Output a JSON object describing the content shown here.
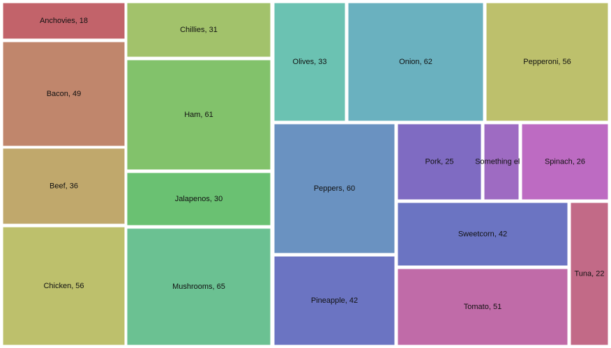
{
  "chart_data": {
    "type": "treemap",
    "title": "",
    "items": [
      {
        "name": "Anchovies",
        "value": 18,
        "label": "Anchovies, 18",
        "color": "#c2636a"
      },
      {
        "name": "Bacon",
        "value": 49,
        "label": "Bacon, 49",
        "color": "#c0866c"
      },
      {
        "name": "Beef",
        "value": 36,
        "label": "Beef, 36",
        "color": "#c0a86c"
      },
      {
        "name": "Chicken",
        "value": 56,
        "label": "Chicken, 56",
        "color": "#bdc06c"
      },
      {
        "name": "Chillies",
        "value": 31,
        "label": "Chillies, 31",
        "color": "#a2c26b"
      },
      {
        "name": "Ham",
        "value": 61,
        "label": "Ham, 61",
        "color": "#82c26b"
      },
      {
        "name": "Jalapenos",
        "value": 30,
        "label": "Jalapenos, 30",
        "color": "#6ac172"
      },
      {
        "name": "Mushrooms",
        "value": 65,
        "label": "Mushrooms, 65",
        "color": "#6bc192"
      },
      {
        "name": "Olives",
        "value": 33,
        "label": "Olives, 33",
        "color": "#6bc2b2"
      },
      {
        "name": "Onion",
        "value": 62,
        "label": "Onion, 62",
        "color": "#6ab1bf"
      },
      {
        "name": "Pepperoni",
        "value": 56,
        "label": "Pepperoni, 56",
        "color": "#bdc06c"
      },
      {
        "name": "Peppers",
        "value": 60,
        "label": "Peppers, 60",
        "color": "#6a92c1"
      },
      {
        "name": "Pineapple",
        "value": 42,
        "label": "Pineapple, 42",
        "color": "#6b74c2"
      },
      {
        "name": "Pork",
        "value": 25,
        "label": "Pork, 25",
        "color": "#7f6bc2"
      },
      {
        "name": "Something else",
        "value": null,
        "label": "Something else",
        "color": "#9e6bc2"
      },
      {
        "name": "Spinach",
        "value": 26,
        "label": "Spinach, 26",
        "color": "#bd6bc2"
      },
      {
        "name": "Sweetcorn",
        "value": 42,
        "label": "Sweetcorn, 42",
        "color": "#6b74c2"
      },
      {
        "name": "Tomato",
        "value": 51,
        "label": "Tomato, 51",
        "color": "#c06ba8"
      },
      {
        "name": "Tuna",
        "value": 22,
        "label": "Tuna, 22",
        "color": "#c26a87"
      }
    ]
  }
}
